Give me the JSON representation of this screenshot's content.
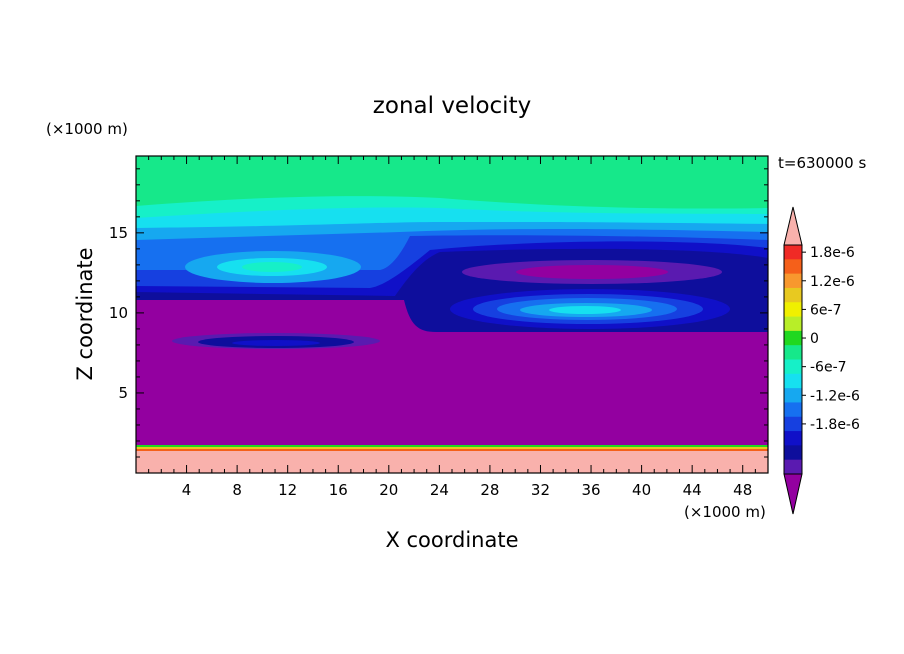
{
  "chart_data": {
    "type": "heatmap",
    "title": "zonal velocity",
    "xlabel": "X coordinate",
    "ylabel": "Z coordinate",
    "x_unit": "(×1000 m)",
    "y_unit": "(×1000 m)",
    "time_label": "t=630000 s",
    "xlim": [
      0,
      50
    ],
    "ylim": [
      0,
      19.8
    ],
    "xticks": [
      4,
      8,
      12,
      16,
      20,
      24,
      28,
      32,
      36,
      40,
      44,
      48
    ],
    "yticks": [
      5,
      10,
      15
    ],
    "colorbar": {
      "levels": [
        1.8e-06,
        1.5e-06,
        1.2e-06,
        9e-07,
        6e-07,
        3e-07,
        0,
        -3e-07,
        -6e-07,
        -9e-07,
        -1.2e-06,
        -1.5e-06,
        -1.8e-06
      ],
      "tick_labels": [
        "1.8e-6",
        "1.2e-6",
        "6e-7",
        "0",
        "-6e-7",
        "-1.2e-6",
        "-1.8e-6"
      ],
      "tick_values": [
        1.8e-06,
        1.2e-06,
        6e-07,
        0,
        -6e-07,
        -1.2e-06,
        -1.8e-06
      ],
      "colors": [
        "#f9b1ac",
        "#f02a26",
        "#f5601a",
        "#f8982e",
        "#e8c920",
        "#f0f000",
        "#b8ee28",
        "#20d820",
        "#16e88a",
        "#16f0c8",
        "#16e0f0",
        "#16a8f0",
        "#1670f0",
        "#1640e0",
        "#1010c8",
        "#0e0e9c",
        "#5a1ab0",
        "#9300a0"
      ]
    },
    "regions": [
      {
        "name": "top-layer",
        "value": "-3e-7 to 0",
        "z_range": [
          16.3,
          19.8
        ]
      },
      {
        "name": "upper-jet-left",
        "value": "min about -1.1e-6",
        "center": [
          11,
          13
        ]
      },
      {
        "name": "upper-jet-right-core",
        "value": "below -1.8e-6",
        "center": [
          36,
          12.5
        ]
      },
      {
        "name": "lower-jet-right",
        "value": "min about -1.2e-6",
        "center": [
          36,
          10.2
        ]
      },
      {
        "name": "left-dark-lens",
        "value": "about -1.7e-6",
        "center": [
          11,
          8.2
        ]
      },
      {
        "name": "interior",
        "value": "below -1.8e-6",
        "z_range": [
          1.8,
          11
        ]
      },
      {
        "name": "bottom-layer",
        "value": "above 1.8e-6",
        "z_range": [
          0,
          1.6
        ]
      }
    ]
  }
}
